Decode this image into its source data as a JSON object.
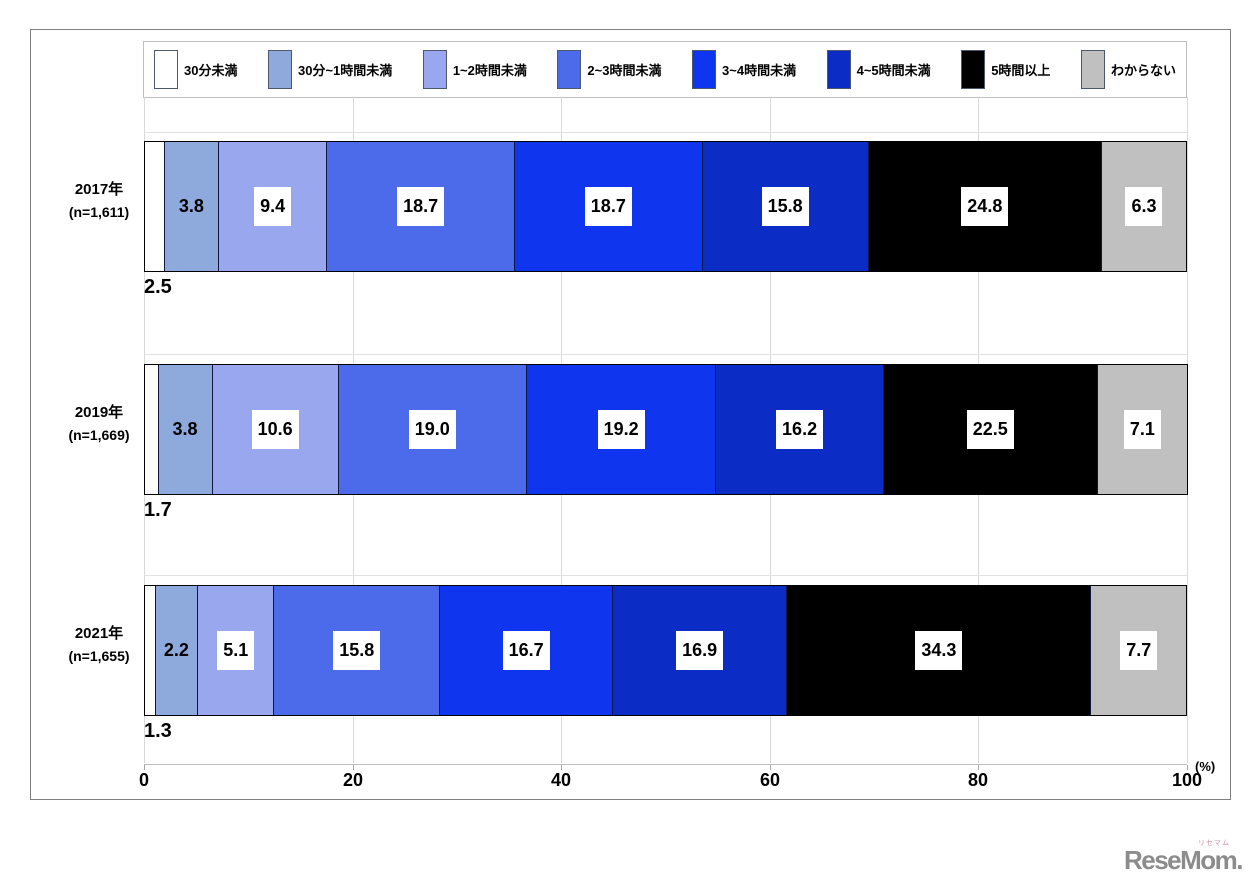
{
  "chart_data": {
    "type": "bar",
    "stacked": true,
    "orientation": "horizontal",
    "title": "",
    "categories": [
      "2017年",
      "2019年",
      "2021年"
    ],
    "category_sublabels": [
      "(n=1,611)",
      "(n=1,669)",
      "(n=1,655)"
    ],
    "series": [
      {
        "name": "30分未満",
        "color": "#ffffff",
        "values": [
          2.5,
          1.7,
          1.3
        ]
      },
      {
        "name": "30分~1時間未満",
        "color": "#8ea9db",
        "values": [
          3.8,
          3.8,
          2.2
        ]
      },
      {
        "name": "1~2時間未満",
        "color": "#99a8ee",
        "values": [
          9.4,
          10.6,
          5.1
        ]
      },
      {
        "name": "2~3時間未満",
        "color": "#4b6beb",
        "values": [
          18.7,
          19.0,
          15.8
        ]
      },
      {
        "name": "3~4時間未満",
        "color": "#1035ee",
        "values": [
          18.7,
          19.2,
          16.7
        ]
      },
      {
        "name": "4~5時間未満",
        "color": "#0b2dc6",
        "values": [
          15.8,
          16.2,
          16.9
        ]
      },
      {
        "name": "5時間以上",
        "color": "#000000",
        "values": [
          24.8,
          22.5,
          34.3
        ]
      },
      {
        "name": "わからない",
        "color": "#c0c0c0",
        "values": [
          6.3,
          7.1,
          7.7
        ]
      }
    ],
    "x_axis": {
      "range": [
        0,
        100
      ],
      "tick_labels": [
        "0",
        "20",
        "40",
        "60",
        "80",
        "100"
      ],
      "unit_label": "(%)"
    },
    "grid": true,
    "legend_position": "top"
  },
  "logo": {
    "text": "ReseMom.",
    "furigana": "リセマム"
  }
}
